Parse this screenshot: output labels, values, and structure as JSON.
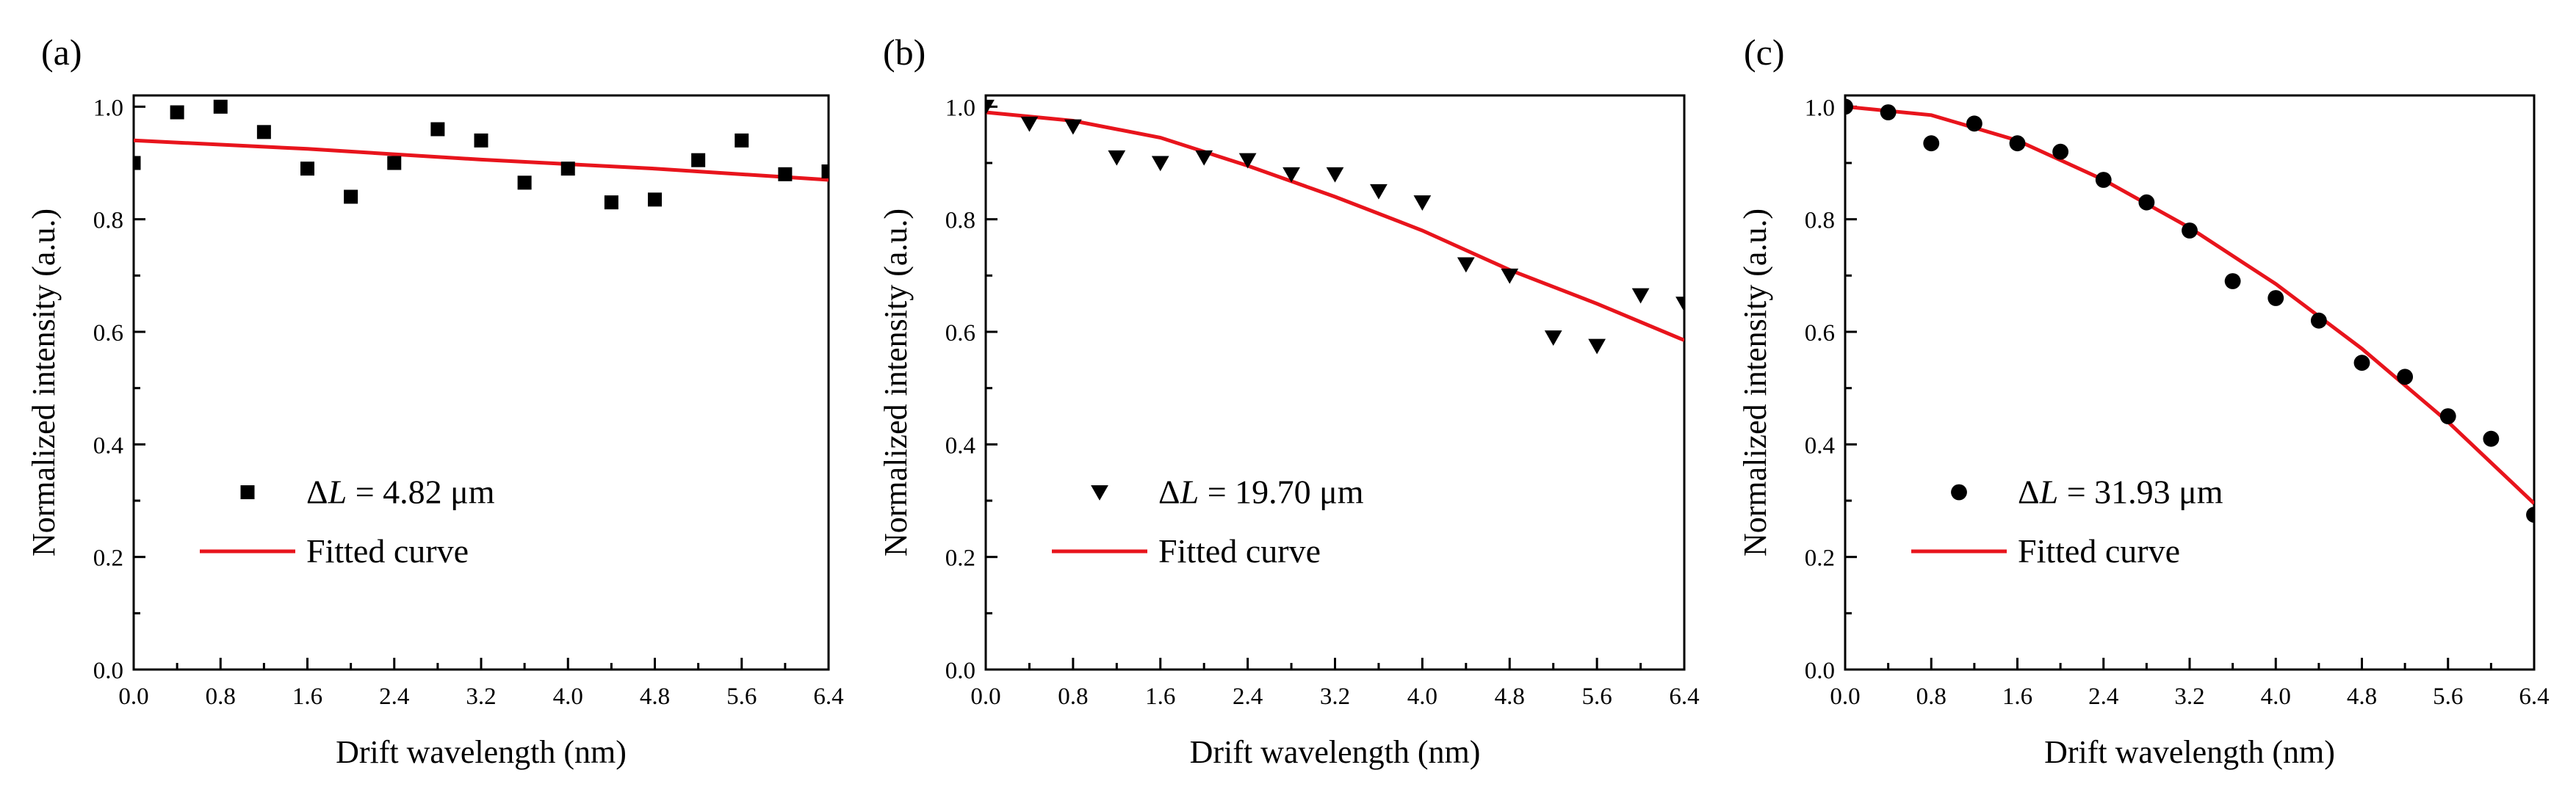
{
  "figure": {
    "colors": {
      "fit": "#e8141c",
      "marker": "#000000",
      "axis": "#000000"
    }
  },
  "chart_data": [
    {
      "type": "scatter",
      "panel_label": "(a)",
      "xlabel": "Drift wavelength (nm)",
      "ylabel": "Normalized intensity (a.u.)",
      "xlim": [
        0,
        6.4
      ],
      "ylim": [
        0,
        1.02
      ],
      "xticks": [
        "0.0",
        "0.8",
        "1.6",
        "2.4",
        "3.2",
        "4.0",
        "4.8",
        "5.6",
        "6.4"
      ],
      "yticks": [
        "0.0",
        "0.2",
        "0.4",
        "0.6",
        "0.8",
        "1.0"
      ],
      "marker": "square",
      "legend": {
        "delta_symbol": "Δ",
        "var_symbol": "L",
        "value_text": " = 4.82 μm",
        "fit_label": "Fitted curve"
      },
      "series": [
        {
          "name": "ΔL = 4.82 μm",
          "x": [
            0.0,
            0.4,
            0.8,
            1.2,
            1.6,
            2.0,
            2.4,
            2.8,
            3.2,
            3.6,
            4.0,
            4.4,
            4.8,
            5.2,
            5.6,
            6.0,
            6.4
          ],
          "y": [
            0.9,
            0.99,
            1.0,
            0.955,
            0.89,
            0.84,
            0.9,
            0.96,
            0.94,
            0.865,
            0.89,
            0.83,
            0.835,
            0.905,
            0.94,
            0.88,
            0.885
          ]
        }
      ],
      "fit": {
        "name": "Fitted curve",
        "x": [
          0.0,
          6.4
        ],
        "y": [
          0.94,
          0.87
        ],
        "points": [
          [
            0.0,
            0.94
          ],
          [
            1.6,
            0.925
          ],
          [
            3.2,
            0.906
          ],
          [
            4.8,
            0.89
          ],
          [
            6.4,
            0.87
          ]
        ]
      }
    },
    {
      "type": "scatter",
      "panel_label": "(b)",
      "xlabel": "Drift wavelength (nm)",
      "ylabel": "Normalized intensity (a.u.)",
      "xlim": [
        0,
        6.4
      ],
      "ylim": [
        0,
        1.02
      ],
      "xticks": [
        "0.0",
        "0.8",
        "1.6",
        "2.4",
        "3.2",
        "4.0",
        "4.8",
        "5.6",
        "6.4"
      ],
      "yticks": [
        "0.0",
        "0.2",
        "0.4",
        "0.6",
        "0.8",
        "1.0"
      ],
      "marker": "triangle-down",
      "legend": {
        "delta_symbol": "Δ",
        "var_symbol": "L",
        "value_text": " = 19.70 μm",
        "fit_label": "Fitted curve"
      },
      "series": [
        {
          "name": "ΔL = 19.70 μm",
          "x": [
            0.0,
            0.4,
            0.8,
            1.2,
            1.6,
            2.0,
            2.4,
            2.8,
            3.2,
            3.6,
            4.0,
            4.4,
            4.8,
            5.2,
            5.6,
            6.0,
            6.4
          ],
          "y": [
            1.0,
            0.97,
            0.965,
            0.91,
            0.9,
            0.91,
            0.905,
            0.88,
            0.88,
            0.85,
            0.83,
            0.72,
            0.7,
            0.59,
            0.575,
            0.665,
            0.65
          ]
        }
      ],
      "fit": {
        "name": "Fitted curve",
        "points": [
          [
            0.0,
            0.99
          ],
          [
            0.8,
            0.975
          ],
          [
            1.6,
            0.945
          ],
          [
            2.4,
            0.895
          ],
          [
            3.2,
            0.84
          ],
          [
            4.0,
            0.78
          ],
          [
            4.8,
            0.71
          ],
          [
            5.6,
            0.65
          ],
          [
            6.4,
            0.585
          ]
        ]
      }
    },
    {
      "type": "scatter",
      "panel_label": "(c)",
      "xlabel": "Drift wavelength (nm)",
      "ylabel": "Normalized intensity (a.u.)",
      "xlim": [
        0,
        6.4
      ],
      "ylim": [
        0,
        1.02
      ],
      "xticks": [
        "0.0",
        "0.8",
        "1.6",
        "2.4",
        "3.2",
        "4.0",
        "4.8",
        "5.6",
        "6.4"
      ],
      "yticks": [
        "0.0",
        "0.2",
        "0.4",
        "0.6",
        "0.8",
        "1.0"
      ],
      "marker": "circle",
      "legend": {
        "delta_symbol": "Δ",
        "var_symbol": "L",
        "value_text": " = 31.93 μm",
        "fit_label": "Fitted curve"
      },
      "series": [
        {
          "name": "ΔL = 31.93 μm",
          "x": [
            0.0,
            0.4,
            0.8,
            1.2,
            1.6,
            2.0,
            2.4,
            2.8,
            3.2,
            3.6,
            4.0,
            4.4,
            4.8,
            5.2,
            5.6,
            6.0,
            6.4
          ],
          "y": [
            1.0,
            0.99,
            0.935,
            0.97,
            0.935,
            0.92,
            0.87,
            0.83,
            0.78,
            0.69,
            0.66,
            0.62,
            0.545,
            0.52,
            0.45,
            0.41,
            0.275
          ]
        }
      ],
      "fit": {
        "name": "Fitted curve",
        "points": [
          [
            0.0,
            1.0
          ],
          [
            0.8,
            0.985
          ],
          [
            1.6,
            0.94
          ],
          [
            2.4,
            0.87
          ],
          [
            3.2,
            0.785
          ],
          [
            4.0,
            0.685
          ],
          [
            4.8,
            0.57
          ],
          [
            5.6,
            0.44
          ],
          [
            6.4,
            0.295
          ]
        ]
      }
    }
  ]
}
